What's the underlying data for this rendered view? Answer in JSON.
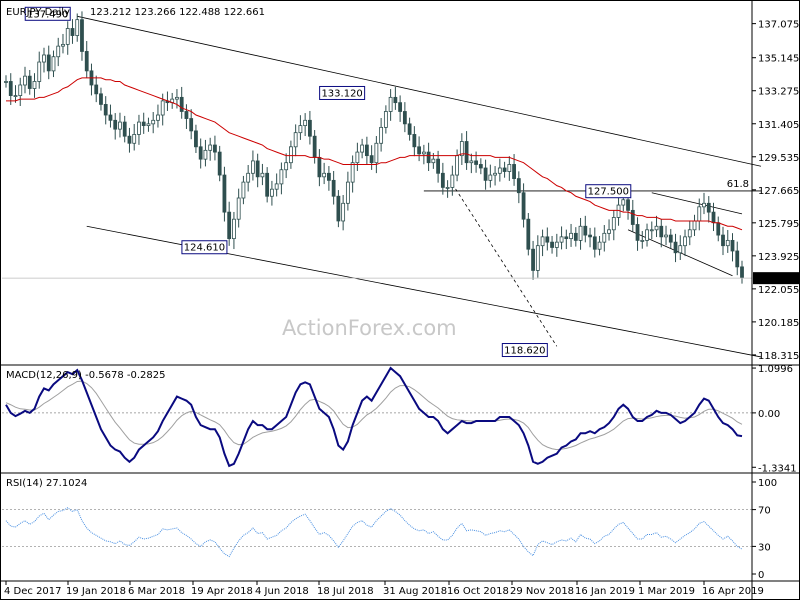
{
  "header": {
    "symbol": "EURJPY,Daily",
    "ohlc": "123.212 123.266 122.488 122.661",
    "macd_label": "MACD(12,26,9) -0.5678 -0.2825",
    "rsi_label": "RSI(14) 27.1024",
    "watermark": "ActionForex.com"
  },
  "colors": {
    "candle": "#2f4f4f",
    "ma": "#cc0000",
    "macd": "#0a0a80",
    "signal": "#a0a0a0",
    "rsi": "#4a90e2",
    "trend": "#000000"
  },
  "chart_data": [
    {
      "type": "candlestick",
      "title": "EURJPY,Daily",
      "ylim": [
        117.8,
        138.3
      ],
      "y_ticks": [
        "137.075",
        "135.145",
        "133.275",
        "131.405",
        "129.535",
        "127.665",
        "125.795",
        "123.925",
        "122.055",
        "120.185",
        "118.315"
      ],
      "x_ticks": [
        "4 Dec 2017",
        "19 Jan 2018",
        "6 Mar 2018",
        "19 Apr 2018",
        "4 Jun 2018",
        "18 Jul 2018",
        "31 Aug 2018",
        "16 Oct 2018",
        "29 Nov 2018",
        "16 Jan 2019",
        "1 Mar 2019",
        "16 Apr 2019"
      ],
      "last_price": "122.661",
      "annotations": [
        "137.490",
        "133.120",
        "124.610",
        "127.500",
        "118.620",
        "61.8"
      ],
      "series": [
        {
          "kind": "close",
          "values": [
            133.8,
            133.0,
            133.0,
            133.6,
            134.1,
            133.4,
            133.8,
            134.9,
            135.3,
            134.4,
            135.2,
            135.8,
            135.9,
            136.8,
            136.4,
            137.3,
            135.5,
            134.4,
            133.6,
            133.1,
            132.5,
            131.9,
            131.6,
            131.1,
            131.5,
            130.7,
            130.3,
            130.8,
            131.5,
            131.3,
            131.4,
            131.6,
            131.9,
            132.7,
            132.6,
            132.8,
            132.9,
            132.1,
            131.7,
            131.0,
            130.1,
            129.4,
            129.9,
            130.2,
            129.8,
            128.5,
            126.4,
            124.9,
            126.0,
            127.2,
            128.1,
            128.6,
            129.3,
            128.4,
            128.6,
            127.3,
            127.7,
            128.0,
            128.8,
            129.2,
            130.1,
            130.9,
            131.3,
            131.6,
            130.7,
            129.5,
            128.4,
            128.6,
            128.2,
            127.3,
            125.9,
            126.9,
            128.1,
            129.2,
            129.8,
            130.2,
            129.6,
            129.2,
            130.3,
            131.2,
            132.1,
            132.9,
            132.6,
            132.1,
            131.4,
            130.8,
            130.1,
            129.7,
            129.8,
            129.2,
            129.4,
            128.6,
            127.8,
            127.8,
            128.5,
            129.6,
            130.4,
            129.2,
            129.3,
            129.1,
            128.9,
            128.2,
            128.5,
            128.6,
            128.9,
            128.7,
            129.1,
            128.3,
            127.5,
            126.0,
            124.3,
            123.1,
            124.5,
            125.0,
            124.7,
            124.4,
            124.7,
            125.0,
            124.9,
            125.2,
            124.8,
            125.6,
            125.1,
            125.0,
            124.3,
            124.7,
            125.2,
            125.4,
            126.1,
            126.8,
            127.1,
            126.5,
            125.7,
            124.8,
            124.8,
            125.4,
            125.4,
            125.6,
            125.0,
            125.1,
            124.7,
            124.1,
            124.5,
            125.0,
            125.4,
            125.9,
            126.7,
            126.9,
            126.4,
            125.8,
            125.1,
            124.5,
            124.8,
            124.2,
            123.3,
            122.7
          ]
        },
        {
          "kind": "sma",
          "values": [
            132.7,
            132.7,
            132.7,
            132.8,
            132.8,
            132.8,
            132.8,
            132.9,
            132.9,
            133.0,
            133.1,
            133.2,
            133.4,
            133.5,
            133.7,
            133.9,
            134.0,
            134.0,
            134.0,
            134.0,
            134.0,
            133.9,
            133.9,
            133.8,
            133.8,
            133.6,
            133.5,
            133.4,
            133.3,
            133.2,
            133.1,
            133.0,
            132.9,
            132.8,
            132.7,
            132.6,
            132.5,
            132.3,
            132.2,
            132.1,
            131.9,
            131.8,
            131.7,
            131.6,
            131.5,
            131.3,
            131.1,
            130.9,
            130.8,
            130.7,
            130.6,
            130.5,
            130.4,
            130.3,
            130.2,
            130.0,
            129.9,
            129.8,
            129.7,
            129.6,
            129.6,
            129.6,
            129.6,
            129.6,
            129.5,
            129.5,
            129.5,
            129.4,
            129.4,
            129.3,
            129.2,
            129.1,
            129.1,
            129.1,
            129.1,
            129.1,
            129.1,
            129.1,
            129.1,
            129.2,
            129.2,
            129.3,
            129.4,
            129.5,
            129.5,
            129.6,
            129.6,
            129.6,
            129.6,
            129.6,
            129.6,
            129.6,
            129.6,
            129.6,
            129.6,
            129.6,
            129.7,
            129.7,
            129.6,
            129.6,
            129.6,
            129.6,
            129.6,
            129.5,
            129.5,
            129.5,
            129.5,
            129.4,
            129.3,
            129.2,
            129.0,
            128.8,
            128.6,
            128.4,
            128.3,
            128.1,
            127.9,
            127.8,
            127.6,
            127.5,
            127.3,
            127.2,
            127.1,
            127.0,
            126.8,
            126.7,
            126.6,
            126.5,
            126.5,
            126.5,
            126.4,
            126.4,
            126.3,
            126.2,
            126.2,
            126.1,
            126.1,
            126.1,
            126.0,
            126.0,
            126.0,
            125.9,
            125.9,
            125.9,
            125.9,
            125.9,
            125.9,
            125.9,
            125.9,
            125.8,
            125.8,
            125.7,
            125.6,
            125.6,
            125.5,
            125.4
          ]
        }
      ]
    },
    {
      "type": "line",
      "title": "MACD(12,26,9) -0.5678 -0.2825",
      "ylim": [
        -1.45,
        1.15
      ],
      "y_ticks": [
        "1.0996",
        "0.00",
        "-1.3341"
      ],
      "series": [
        {
          "kind": "macd",
          "values": [
            0.2,
            0.0,
            -0.08,
            -0.02,
            0.05,
            0.0,
            0.1,
            0.4,
            0.6,
            0.55,
            0.7,
            0.8,
            0.9,
            1.0,
            0.95,
            1.05,
            0.8,
            0.5,
            0.2,
            -0.1,
            -0.4,
            -0.6,
            -0.8,
            -0.9,
            -0.95,
            -1.1,
            -1.2,
            -1.1,
            -0.9,
            -0.8,
            -0.7,
            -0.6,
            -0.45,
            -0.2,
            0.0,
            0.2,
            0.4,
            0.35,
            0.3,
            0.2,
            -0.1,
            -0.3,
            -0.35,
            -0.4,
            -0.4,
            -0.6,
            -1.0,
            -1.3,
            -1.25,
            -1.0,
            -0.7,
            -0.4,
            -0.2,
            -0.3,
            -0.3,
            -0.4,
            -0.4,
            -0.3,
            -0.2,
            -0.1,
            0.2,
            0.5,
            0.7,
            0.75,
            0.7,
            0.4,
            0.1,
            0.0,
            -0.1,
            -0.4,
            -0.8,
            -0.9,
            -0.7,
            -0.3,
            0.0,
            0.3,
            0.4,
            0.3,
            0.5,
            0.7,
            0.9,
            1.1,
            1.0,
            0.9,
            0.7,
            0.5,
            0.3,
            0.1,
            0.0,
            -0.1,
            -0.1,
            -0.2,
            -0.4,
            -0.5,
            -0.4,
            -0.3,
            -0.2,
            -0.25,
            -0.25,
            -0.2,
            -0.2,
            -0.2,
            -0.2,
            -0.2,
            -0.1,
            -0.1,
            -0.1,
            -0.2,
            -0.3,
            -0.5,
            -0.8,
            -1.2,
            -1.25,
            -1.2,
            -1.1,
            -1.05,
            -1.0,
            -0.85,
            -0.8,
            -0.7,
            -0.65,
            -0.5,
            -0.5,
            -0.45,
            -0.5,
            -0.4,
            -0.35,
            -0.25,
            -0.1,
            0.1,
            0.2,
            0.1,
            -0.1,
            -0.2,
            -0.2,
            -0.1,
            -0.05,
            0.05,
            0.0,
            0.0,
            -0.05,
            -0.15,
            -0.25,
            -0.2,
            -0.1,
            0.0,
            0.2,
            0.35,
            0.3,
            0.1,
            -0.1,
            -0.25,
            -0.3,
            -0.4,
            -0.55,
            -0.57
          ]
        },
        {
          "kind": "signal",
          "values": [
            0.25,
            0.2,
            0.14,
            0.1,
            0.09,
            0.07,
            0.07,
            0.14,
            0.23,
            0.3,
            0.38,
            0.46,
            0.55,
            0.64,
            0.7,
            0.77,
            0.78,
            0.72,
            0.62,
            0.48,
            0.3,
            0.12,
            -0.06,
            -0.23,
            -0.37,
            -0.52,
            -0.66,
            -0.74,
            -0.77,
            -0.77,
            -0.76,
            -0.73,
            -0.67,
            -0.58,
            -0.46,
            -0.33,
            -0.18,
            -0.07,
            0.0,
            0.04,
            0.01,
            -0.05,
            -0.11,
            -0.17,
            -0.22,
            -0.29,
            -0.43,
            -0.6,
            -0.73,
            -0.78,
            -0.77,
            -0.69,
            -0.6,
            -0.54,
            -0.49,
            -0.47,
            -0.45,
            -0.42,
            -0.38,
            -0.32,
            -0.22,
            -0.08,
            0.08,
            0.21,
            0.31,
            0.33,
            0.28,
            0.23,
            0.16,
            0.05,
            -0.12,
            -0.28,
            -0.36,
            -0.35,
            -0.28,
            -0.16,
            -0.05,
            0.02,
            0.11,
            0.23,
            0.36,
            0.51,
            0.61,
            0.67,
            0.67,
            0.64,
            0.57,
            0.48,
            0.38,
            0.28,
            0.2,
            0.12,
            0.02,
            -0.08,
            -0.14,
            -0.17,
            -0.18,
            -0.19,
            -0.2,
            -0.2,
            -0.2,
            -0.2,
            -0.2,
            -0.2,
            -0.18,
            -0.16,
            -0.15,
            -0.16,
            -0.19,
            -0.25,
            -0.36,
            -0.53,
            -0.67,
            -0.78,
            -0.84,
            -0.88,
            -0.9,
            -0.89,
            -0.87,
            -0.84,
            -0.8,
            -0.74,
            -0.69,
            -0.64,
            -0.61,
            -0.57,
            -0.53,
            -0.47,
            -0.4,
            -0.3,
            -0.2,
            -0.14,
            -0.13,
            -0.14,
            -0.15,
            -0.14,
            -0.12,
            -0.09,
            -0.07,
            -0.06,
            -0.06,
            -0.08,
            -0.11,
            -0.13,
            -0.12,
            -0.1,
            -0.04,
            0.04,
            0.09,
            0.09,
            0.05,
            -0.01,
            -0.07,
            -0.13,
            -0.22,
            -0.28
          ]
        }
      ]
    },
    {
      "type": "line",
      "title": "RSI(14) 27.1024",
      "ylim": [
        0,
        100
      ],
      "y_ticks": [
        "100",
        "70",
        "30",
        "0"
      ],
      "series": [
        {
          "kind": "rsi",
          "values": [
            58,
            52,
            51,
            55,
            58,
            54,
            57,
            63,
            66,
            59,
            64,
            68,
            69,
            72,
            68,
            70,
            58,
            50,
            45,
            42,
            39,
            36,
            35,
            33,
            36,
            32,
            31,
            35,
            40,
            38,
            39,
            41,
            43,
            49,
            48,
            49,
            50,
            45,
            42,
            38,
            33,
            30,
            35,
            37,
            35,
            28,
            22,
            19,
            28,
            36,
            42,
            45,
            50,
            44,
            45,
            38,
            40,
            42,
            47,
            50,
            56,
            60,
            63,
            65,
            58,
            50,
            43,
            45,
            42,
            36,
            29,
            36,
            44,
            52,
            56,
            58,
            53,
            51,
            58,
            63,
            68,
            71,
            68,
            64,
            58,
            53,
            49,
            47,
            48,
            44,
            46,
            41,
            37,
            37,
            42,
            50,
            55,
            47,
            48,
            47,
            46,
            42,
            44,
            45,
            47,
            46,
            48,
            43,
            38,
            30,
            24,
            20,
            32,
            36,
            34,
            32,
            35,
            37,
            36,
            39,
            35,
            43,
            39,
            38,
            33,
            36,
            41,
            43,
            49,
            54,
            56,
            50,
            44,
            38,
            38,
            43,
            43,
            45,
            40,
            41,
            38,
            34,
            38,
            42,
            45,
            49,
            55,
            57,
            52,
            47,
            42,
            38,
            41,
            36,
            30,
            27
          ]
        }
      ]
    }
  ]
}
